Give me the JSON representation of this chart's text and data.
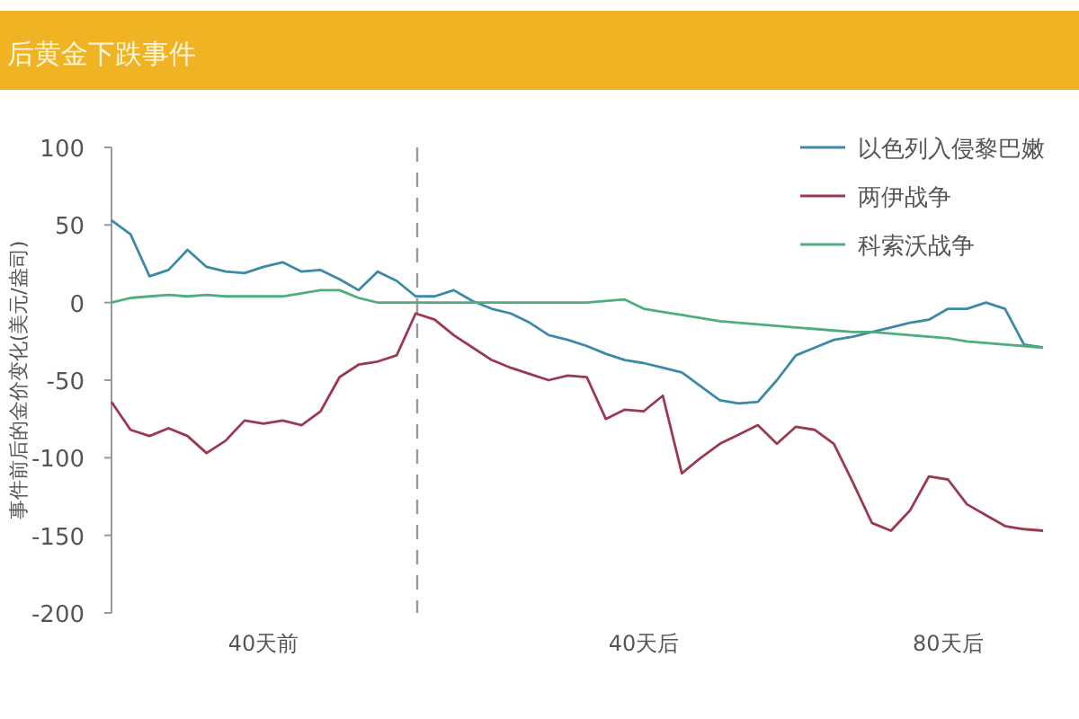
{
  "chart_data": {
    "type": "line",
    "title": "后黄金下跌事件",
    "ylabel": "事件前后的金价变化(美元/盎司)",
    "categories": [
      null,
      null,
      null,
      null,
      null,
      null,
      null,
      null,
      "40天前",
      null,
      null,
      null,
      null,
      null,
      null,
      null,
      null,
      null,
      null,
      null,
      null,
      null,
      null,
      null,
      null,
      null,
      null,
      null,
      "40天后",
      null,
      null,
      null,
      null,
      null,
      null,
      null,
      null,
      null,
      null,
      null,
      null,
      null,
      null,
      null,
      "80天后",
      null,
      null,
      null,
      null,
      null
    ],
    "ylim": [
      -200,
      100
    ],
    "yticks": [
      -200,
      -150,
      -100,
      -50,
      0,
      50,
      100
    ],
    "legend": "top right",
    "line_style": "solid",
    "series": [
      {
        "name": "以色列入侵黎巴嫩",
        "color": "#3d8aa8",
        "values": [
          53,
          44,
          17,
          21,
          34,
          23,
          20,
          19,
          23,
          26,
          20,
          21,
          15,
          8,
          20,
          14,
          4,
          4,
          8,
          1,
          -4,
          -7,
          -13,
          -21,
          -24,
          -28,
          -33,
          -37,
          -39,
          -42,
          -45,
          -54,
          -63,
          -65,
          -64,
          -50,
          -34,
          -29,
          -24,
          -22,
          -19,
          -16,
          -13,
          -11,
          -4,
          -4,
          0,
          -4,
          -27,
          -29
        ]
      },
      {
        "name": "两伊战争",
        "color": "#9b3a4f",
        "values": [
          -64,
          -82,
          -86,
          -81,
          -86,
          -97,
          -89,
          -76,
          -78,
          -76,
          -79,
          -70,
          -48,
          -40,
          -38,
          -34,
          -7,
          -11,
          -21,
          -29,
          -37,
          -42,
          -46,
          -50,
          -47,
          -48,
          -75,
          -69,
          -70,
          -60,
          -110,
          -100,
          -91,
          -85,
          -79,
          -91,
          -80,
          -82,
          -91,
          -116,
          -142,
          -147,
          -134,
          -112,
          -114,
          -130,
          -137,
          -144,
          -146,
          -147
        ]
      },
      {
        "name": "科索沃战争",
        "color": "#4fae7e",
        "values": [
          0,
          3,
          4,
          5,
          4,
          5,
          4,
          4,
          4,
          4,
          6,
          8,
          8,
          3,
          0,
          0,
          0,
          0,
          0,
          0,
          0,
          0,
          0,
          0,
          0,
          0,
          1,
          2,
          -4,
          -6,
          -8,
          -10,
          -12,
          -13,
          -14,
          -15,
          -16,
          -17,
          -18,
          -19,
          -19,
          -20,
          -21,
          -22,
          -23,
          -25,
          -26,
          -27,
          -28,
          -29
        ]
      }
    ]
  }
}
